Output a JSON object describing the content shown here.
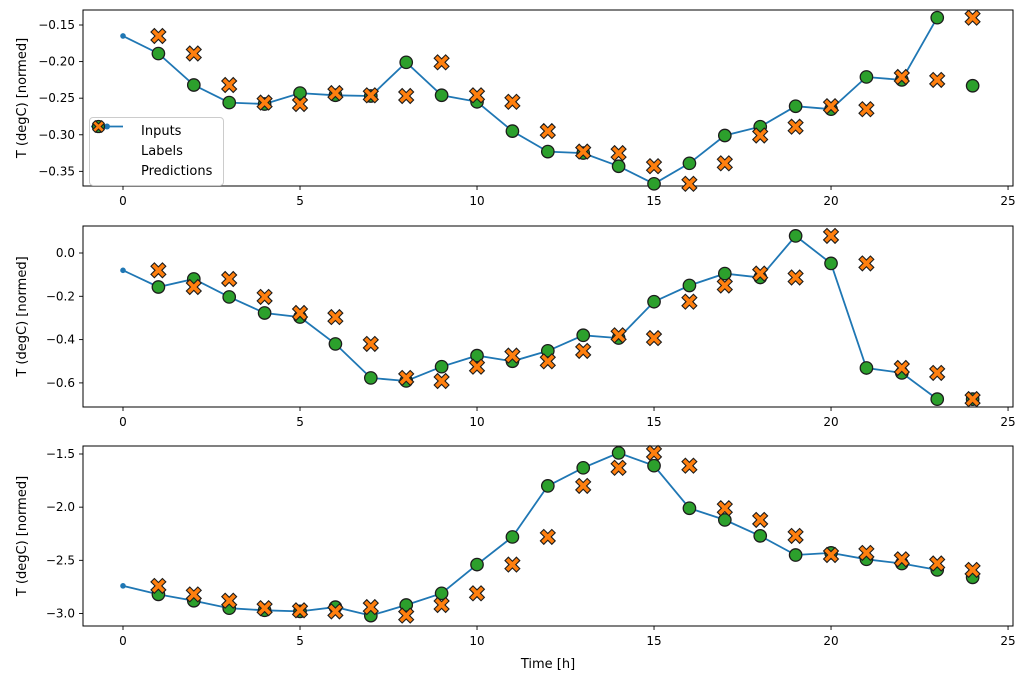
{
  "figure": {
    "xlabel": "Time [h]",
    "ylabel": "T (degC) [normed]",
    "background": "#ffffff",
    "colors": {
      "inputs": "#1f77b4",
      "labels": "#2ca02c",
      "predictions": "#ff7f0e",
      "marker_edge": "#1c1c1c",
      "spine": "#000000",
      "legend_border": "#cccccc"
    },
    "legend": {
      "position": "upper-left-of-first-subplot",
      "items": [
        {
          "label": "Inputs",
          "icon": "line-with-dot-icon"
        },
        {
          "label": "Labels",
          "icon": "green-circle-icon"
        },
        {
          "label": "Predictions",
          "icon": "orange-x-icon"
        }
      ]
    }
  },
  "chart_data": [
    {
      "type": "line",
      "title": "",
      "ylabel": "T (degC) [normed]",
      "xlabel": "",
      "grid": false,
      "xlim": [
        -1.13,
        25.14
      ],
      "ylim": [
        -0.37,
        -0.1295
      ],
      "xticks": {
        "values": [
          0,
          5,
          10,
          15,
          20,
          25
        ],
        "labels": [
          "0",
          "5",
          "10",
          "15",
          "20",
          "25"
        ]
      },
      "yticks": {
        "values": [
          -0.15,
          -0.2,
          -0.25,
          -0.3,
          -0.35
        ],
        "labels": [
          "−0.15",
          "−0.20",
          "−0.25",
          "−0.30",
          "−0.35"
        ]
      },
      "series": [
        {
          "name": "Inputs",
          "style": "line+dot",
          "color": "#1f77b4",
          "x": [
            0,
            1,
            2,
            3,
            4,
            5,
            6,
            7,
            8,
            9,
            10,
            11,
            12,
            13,
            14,
            15,
            16,
            17,
            18,
            19,
            20,
            21,
            22,
            23
          ],
          "y": [
            -0.165,
            -0.189,
            -0.232,
            -0.256,
            -0.258,
            -0.243,
            -0.246,
            -0.247,
            -0.201,
            -0.246,
            -0.255,
            -0.295,
            -0.323,
            -0.325,
            -0.343,
            -0.367,
            -0.339,
            -0.301,
            -0.289,
            -0.261,
            -0.265,
            -0.221,
            -0.225,
            -0.14
          ]
        },
        {
          "name": "Labels",
          "style": "scatter-circle",
          "color": "#2ca02c",
          "x": [
            1,
            2,
            3,
            4,
            5,
            6,
            7,
            8,
            9,
            10,
            11,
            12,
            13,
            14,
            15,
            16,
            17,
            18,
            19,
            20,
            21,
            22,
            23,
            24
          ],
          "y": [
            -0.189,
            -0.232,
            -0.256,
            -0.258,
            -0.243,
            -0.246,
            -0.247,
            -0.201,
            -0.246,
            -0.255,
            -0.295,
            -0.323,
            -0.325,
            -0.343,
            -0.367,
            -0.339,
            -0.301,
            -0.289,
            -0.261,
            -0.265,
            -0.221,
            -0.225,
            -0.14,
            -0.233
          ]
        },
        {
          "name": "Predictions",
          "style": "scatter-x",
          "color": "#ff7f0e",
          "x": [
            1,
            2,
            3,
            4,
            5,
            6,
            7,
            8,
            9,
            10,
            11,
            12,
            13,
            14,
            15,
            16,
            17,
            18,
            19,
            20,
            21,
            22,
            23,
            24
          ],
          "y": [
            -0.165,
            -0.189,
            -0.232,
            -0.256,
            -0.258,
            -0.243,
            -0.246,
            -0.247,
            -0.201,
            -0.246,
            -0.255,
            -0.295,
            -0.323,
            -0.325,
            -0.343,
            -0.367,
            -0.339,
            -0.301,
            -0.289,
            -0.261,
            -0.265,
            -0.221,
            -0.225,
            -0.14
          ]
        }
      ]
    },
    {
      "type": "line",
      "title": "",
      "ylabel": "T (degC) [normed]",
      "xlabel": "",
      "grid": false,
      "xlim": [
        -1.13,
        25.14
      ],
      "ylim": [
        -0.7113,
        0.1247
      ],
      "xticks": {
        "values": [
          0,
          5,
          10,
          15,
          20,
          25
        ],
        "labels": [
          "0",
          "5",
          "10",
          "15",
          "20",
          "25"
        ]
      },
      "yticks": {
        "values": [
          0.0,
          -0.2,
          -0.4,
          -0.6
        ],
        "labels": [
          "0.0",
          "−0.2",
          "−0.4",
          "−0.6"
        ]
      },
      "series": [
        {
          "name": "Inputs",
          "style": "line+dot",
          "color": "#1f77b4",
          "x": [
            0,
            1,
            2,
            3,
            4,
            5,
            6,
            7,
            8,
            9,
            10,
            11,
            12,
            13,
            14,
            15,
            16,
            17,
            18,
            19,
            20,
            21,
            22,
            23
          ],
          "y": [
            -0.08,
            -0.157,
            -0.12,
            -0.203,
            -0.277,
            -0.296,
            -0.42,
            -0.577,
            -0.591,
            -0.525,
            -0.474,
            -0.5,
            -0.452,
            -0.38,
            -0.393,
            -0.225,
            -0.15,
            -0.095,
            -0.113,
            0.079,
            -0.048,
            -0.531,
            -0.554,
            -0.675
          ]
        },
        {
          "name": "Labels",
          "style": "scatter-circle",
          "color": "#2ca02c",
          "x": [
            1,
            2,
            3,
            4,
            5,
            6,
            7,
            8,
            9,
            10,
            11,
            12,
            13,
            14,
            15,
            16,
            17,
            18,
            19,
            20,
            21,
            22,
            23,
            24
          ],
          "y": [
            -0.157,
            -0.12,
            -0.203,
            -0.277,
            -0.296,
            -0.42,
            -0.577,
            -0.591,
            -0.525,
            -0.474,
            -0.5,
            -0.452,
            -0.38,
            -0.393,
            -0.225,
            -0.15,
            -0.095,
            -0.113,
            0.079,
            -0.048,
            -0.531,
            -0.554,
            -0.675,
            -0.675
          ]
        },
        {
          "name": "Predictions",
          "style": "scatter-x",
          "color": "#ff7f0e",
          "x": [
            1,
            2,
            3,
            4,
            5,
            6,
            7,
            8,
            9,
            10,
            11,
            12,
            13,
            14,
            15,
            16,
            17,
            18,
            19,
            20,
            21,
            22,
            23,
            24
          ],
          "y": [
            -0.08,
            -0.157,
            -0.12,
            -0.203,
            -0.277,
            -0.296,
            -0.42,
            -0.577,
            -0.591,
            -0.525,
            -0.474,
            -0.5,
            -0.452,
            -0.38,
            -0.393,
            -0.225,
            -0.15,
            -0.095,
            -0.113,
            0.079,
            -0.048,
            -0.531,
            -0.554,
            -0.675
          ]
        }
      ]
    },
    {
      "type": "line",
      "title": "",
      "ylabel": "T (degC) [normed]",
      "xlabel": "Time [h]",
      "grid": false,
      "xlim": [
        -1.13,
        25.14
      ],
      "ylim": [
        -3.1175,
        -1.4248
      ],
      "xticks": {
        "values": [
          0,
          5,
          10,
          15,
          20,
          25
        ],
        "labels": [
          "0",
          "5",
          "10",
          "15",
          "20",
          "25"
        ]
      },
      "yticks": {
        "values": [
          -1.5,
          -2.0,
          -2.5,
          -3.0
        ],
        "labels": [
          "−1.5",
          "−2.0",
          "−2.5",
          "−3.0"
        ]
      },
      "series": [
        {
          "name": "Inputs",
          "style": "line+dot",
          "color": "#1f77b4",
          "x": [
            0,
            1,
            2,
            3,
            4,
            5,
            6,
            7,
            8,
            9,
            10,
            11,
            12,
            13,
            14,
            15,
            16,
            17,
            18,
            19,
            20,
            21,
            22,
            23
          ],
          "y": [
            -2.74,
            -2.82,
            -2.88,
            -2.95,
            -2.97,
            -2.98,
            -2.94,
            -3.02,
            -2.92,
            -2.81,
            -2.54,
            -2.28,
            -1.8,
            -1.63,
            -1.49,
            -1.61,
            -2.01,
            -2.12,
            -2.27,
            -2.45,
            -2.43,
            -2.49,
            -2.53,
            -2.59
          ]
        },
        {
          "name": "Labels",
          "style": "scatter-circle",
          "color": "#2ca02c",
          "x": [
            1,
            2,
            3,
            4,
            5,
            6,
            7,
            8,
            9,
            10,
            11,
            12,
            13,
            14,
            15,
            16,
            17,
            18,
            19,
            20,
            21,
            22,
            23,
            24
          ],
          "y": [
            -2.82,
            -2.88,
            -2.95,
            -2.97,
            -2.98,
            -2.94,
            -3.02,
            -2.92,
            -2.81,
            -2.54,
            -2.28,
            -1.8,
            -1.63,
            -1.49,
            -1.61,
            -2.01,
            -2.12,
            -2.27,
            -2.45,
            -2.43,
            -2.49,
            -2.53,
            -2.59,
            -2.66
          ]
        },
        {
          "name": "Predictions",
          "style": "scatter-x",
          "color": "#ff7f0e",
          "x": [
            1,
            2,
            3,
            4,
            5,
            6,
            7,
            8,
            9,
            10,
            11,
            12,
            13,
            14,
            15,
            16,
            17,
            18,
            19,
            20,
            21,
            22,
            23,
            24
          ],
          "y": [
            -2.74,
            -2.82,
            -2.88,
            -2.95,
            -2.97,
            -2.98,
            -2.94,
            -3.02,
            -2.92,
            -2.81,
            -2.54,
            -2.28,
            -1.8,
            -1.63,
            -1.49,
            -1.61,
            -2.01,
            -2.12,
            -2.27,
            -2.45,
            -2.43,
            -2.49,
            -2.53,
            -2.59
          ]
        }
      ]
    }
  ]
}
